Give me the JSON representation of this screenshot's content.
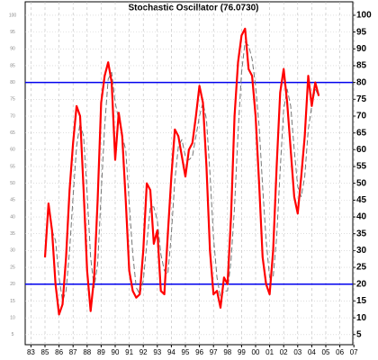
{
  "chart_data": {
    "type": "line",
    "title": "Stochastic Oscillator (76.0730)",
    "categories": [
      "83",
      null,
      null,
      null,
      "85",
      null,
      null,
      null,
      "86",
      null,
      null,
      null,
      "87",
      null,
      null,
      null,
      "88",
      null,
      null,
      null,
      "89",
      null,
      null,
      null,
      "90",
      null,
      null,
      null,
      "91",
      null,
      null,
      null,
      "92",
      null,
      null,
      null,
      "93",
      null,
      null,
      null,
      "94",
      null,
      null,
      null,
      "95",
      null,
      null,
      null,
      "96",
      null,
      null,
      null,
      "97",
      null,
      null,
      null,
      "98",
      null,
      null,
      null,
      "99",
      null,
      null,
      null,
      "00",
      null,
      null,
      null,
      "01",
      null,
      null,
      null,
      "02",
      null,
      null,
      null,
      "03",
      null,
      null,
      null,
      "04",
      null,
      null,
      null,
      "05",
      null,
      null,
      null,
      "06",
      null,
      null,
      null,
      "07",
      null,
      null,
      null
    ],
    "series": [
      {
        "color": "#ff0000",
        "dashed": false,
        "values": [
          null,
          null,
          null,
          null,
          28,
          44,
          36,
          20,
          11,
          14,
          28,
          48,
          62,
          73,
          70,
          48,
          24,
          12,
          22,
          45,
          74,
          82,
          86,
          80,
          57,
          71,
          64,
          45,
          24,
          18,
          16,
          17,
          30,
          50,
          48,
          32,
          36,
          18,
          17,
          35,
          52,
          66,
          64,
          58,
          52,
          60,
          62,
          70,
          79,
          74,
          55,
          30,
          17,
          18,
          13,
          22,
          20,
          40,
          70,
          86,
          94,
          96,
          84,
          82,
          70,
          50,
          28,
          20,
          17,
          30,
          55,
          77,
          84,
          74,
          60,
          46,
          41,
          52,
          64,
          82,
          73,
          80,
          76,
          null,
          null,
          null,
          null,
          null,
          null,
          null,
          null,
          null,
          null,
          null,
          null,
          null
        ]
      },
      {
        "color": "#777777",
        "dashed": true,
        "values": [
          null,
          null,
          null,
          null,
          null,
          null,
          36,
          33,
          22,
          15,
          18,
          30,
          46,
          61,
          68,
          64,
          47,
          28,
          19,
          26,
          47,
          67,
          81,
          83,
          74,
          69,
          64,
          60,
          44,
          29,
          19,
          17,
          21,
          32,
          43,
          43,
          39,
          29,
          24,
          23,
          35,
          51,
          61,
          63,
          58,
          57,
          58,
          64,
          70,
          74,
          69,
          53,
          34,
          22,
          16,
          18,
          18,
          27,
          43,
          65,
          83,
          92,
          91,
          87,
          79,
          67,
          49,
          33,
          22,
          22,
          34,
          54,
          72,
          78,
          73,
          60,
          49,
          46,
          52,
          66,
          73,
          78,
          76,
          null,
          null,
          null,
          null,
          null,
          null,
          null,
          null,
          null,
          null,
          null,
          null,
          null
        ]
      }
    ],
    "hlines": [
      80,
      20
    ],
    "hline_color": "#0000ee",
    "ylim": [
      2,
      104
    ],
    "yticks": [
      5,
      10,
      15,
      20,
      25,
      30,
      35,
      40,
      45,
      50,
      55,
      60,
      65,
      70,
      75,
      80,
      85,
      90,
      95,
      100
    ],
    "grid": true
  }
}
